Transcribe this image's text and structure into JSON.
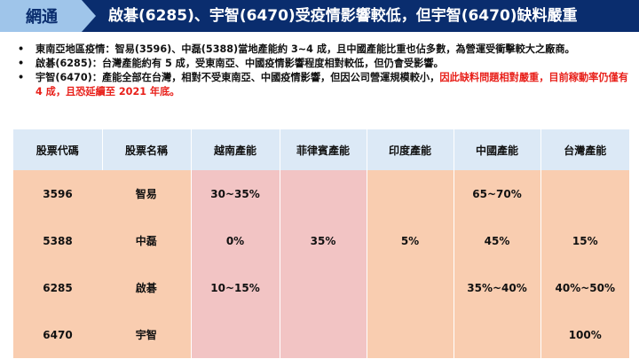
{
  "header": {
    "tag": "網通",
    "title": "啟碁(6285)、宇智(6470)受疫情影響較低，但宇智(6470)缺料嚴重"
  },
  "bullets": [
    {
      "text": "東南亞地區疫情：智易(3596)、中磊(5388)當地產能約 3~4 成，且中國產能比重也佔多數，為營運受衝擊較大之廠商。",
      "highlight": ""
    },
    {
      "text": "啟碁(6285)：台灣產能約有 5 成，受東南亞、中國疫情影響程度相對較低，但仍會受影響。",
      "highlight": ""
    },
    {
      "text": "宇智(6470)：產能全部在台灣，相對不受東南亞、中國疫情影響，但因公司營運規模較小，",
      "highlight": "因此缺料問題相對嚴重，目前稼動率仍僅有 4 成，且恐延續至 2021 年底。"
    }
  ],
  "table": {
    "headers": [
      "股票代碼",
      "股票名稱",
      "越南產能",
      "菲律賓產能",
      "印度產能",
      "中國產能",
      "台灣產能"
    ],
    "rows": [
      {
        "code": "3596",
        "name": "智易",
        "vn": "30~35%",
        "ph": "",
        "in": "",
        "cn": "65~70%",
        "tw": ""
      },
      {
        "code": "5388",
        "name": "中磊",
        "vn": "0%",
        "ph": "35%",
        "in": "5%",
        "cn": "45%",
        "tw": "15%"
      },
      {
        "code": "6285",
        "name": "啟碁",
        "vn": "10~15%",
        "ph": "",
        "in": "",
        "cn": "35%~40%",
        "tw": "40%~50%"
      },
      {
        "code": "6470",
        "name": "宇智",
        "vn": "",
        "ph": "",
        "in": "",
        "cn": "",
        "tw": "100%"
      }
    ]
  },
  "colors": {
    "header_bg": "#0a2d6e",
    "tag_bg": "#9fc5ea",
    "highlight": "#e8201a",
    "table_header_bg": "#dce9f6",
    "table_body_bg": "#f9cdb0",
    "table_pink_bg": "#f2c4c4"
  }
}
